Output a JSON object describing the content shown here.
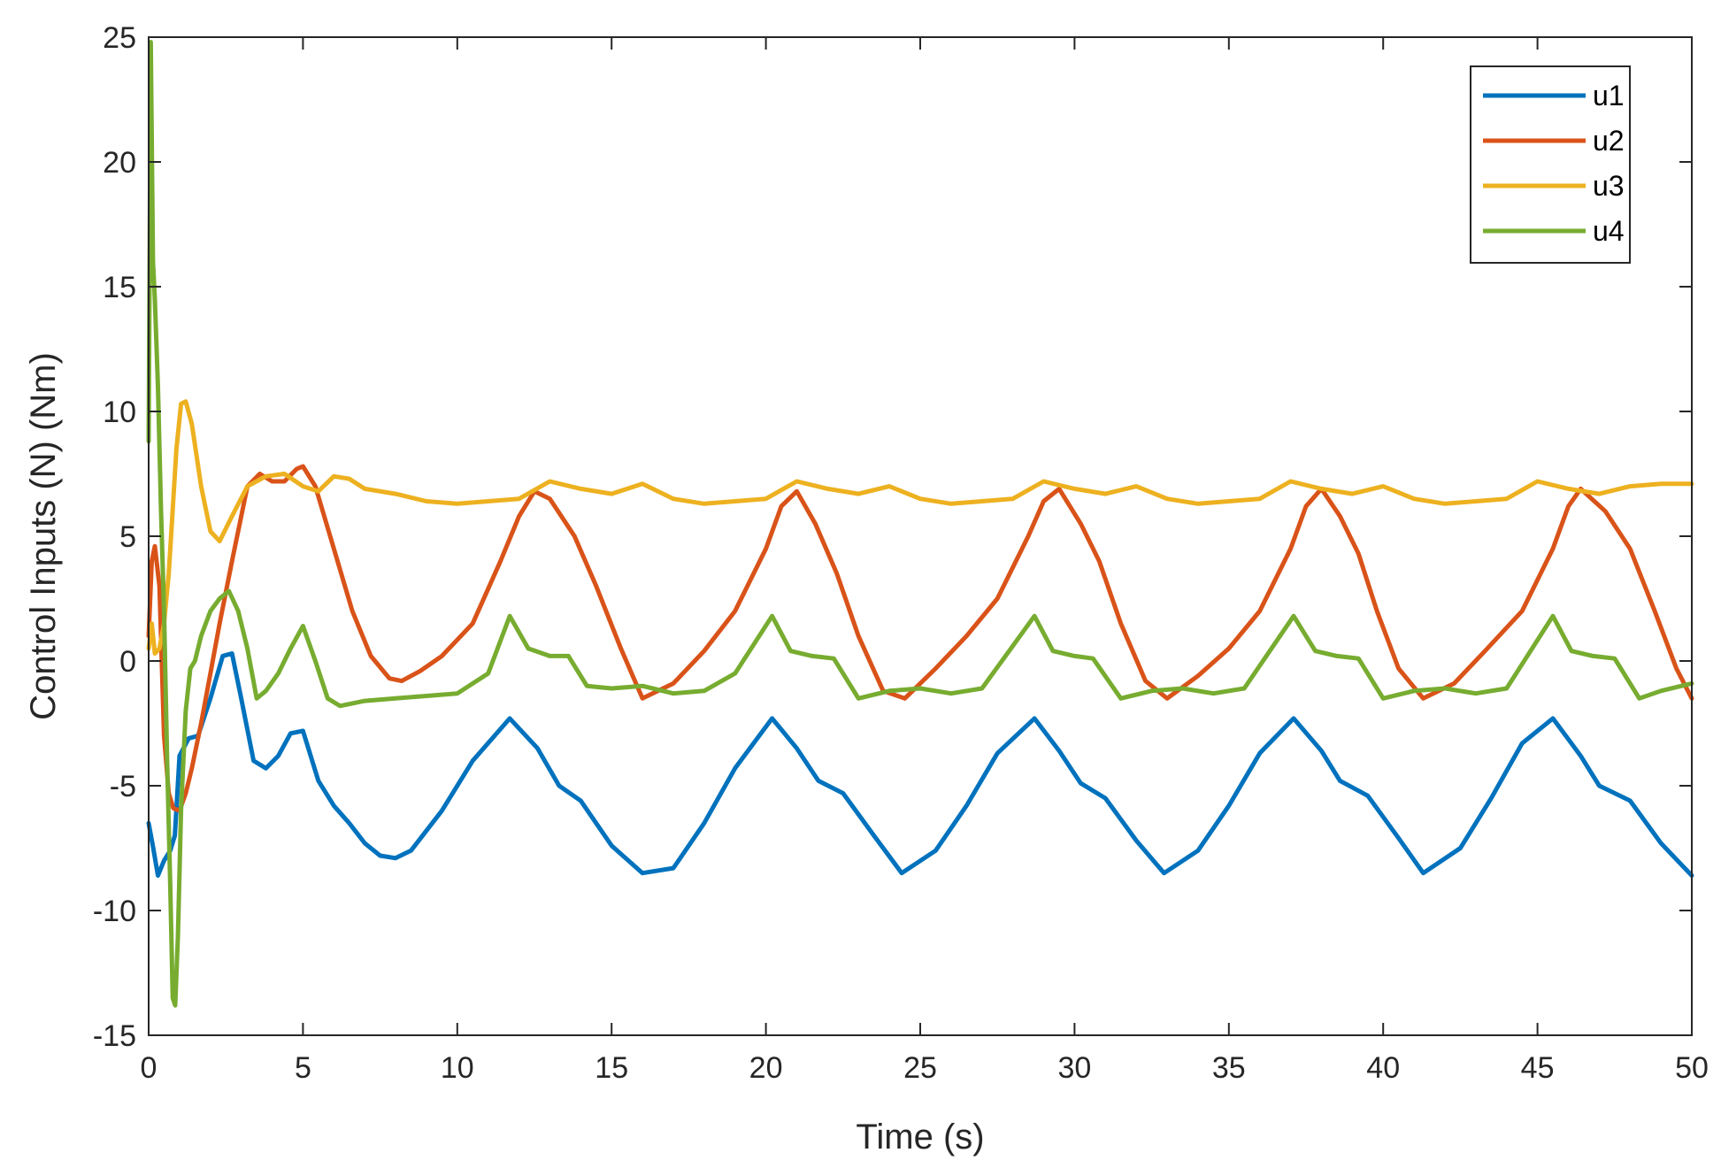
{
  "chart_data": {
    "type": "line",
    "title": "",
    "xlabel": "Time (s)",
    "ylabel": "Control Inputs (N) (Nm)",
    "xlim": [
      0,
      50
    ],
    "ylim": [
      -15,
      25
    ],
    "xticks": [
      0,
      5,
      10,
      15,
      20,
      25,
      30,
      35,
      40,
      45,
      50
    ],
    "yticks": [
      -15,
      -10,
      -5,
      0,
      5,
      10,
      15,
      20,
      25
    ],
    "xtick_labels": [
      "0",
      "5",
      "10",
      "15",
      "20",
      "25",
      "30",
      "35",
      "40",
      "45",
      "50"
    ],
    "ytick_labels": [
      "-15",
      "-10",
      "-5",
      "0",
      "5",
      "10",
      "15",
      "20",
      "25"
    ],
    "grid": false,
    "legend_position": "top-right",
    "series": [
      {
        "name": "u1",
        "color": "#0072BD",
        "x": [
          0,
          0.15,
          0.3,
          0.5,
          0.7,
          0.85,
          1.0,
          1.3,
          1.6,
          2.0,
          2.4,
          2.7,
          3.0,
          3.4,
          3.8,
          4.2,
          4.6,
          5.0,
          5.5,
          6.0,
          6.5,
          7.0,
          7.5,
          8.0,
          8.5,
          9.5,
          10.5,
          11.7,
          12.6,
          13.3,
          14.0,
          15.0,
          16.0,
          17.0,
          18.0,
          19.0,
          20.2,
          21.0,
          21.7,
          22.5,
          23.5,
          24.4,
          25.5,
          26.5,
          27.5,
          28.7,
          29.5,
          30.2,
          31.0,
          32.0,
          32.9,
          34.0,
          35.0,
          36.0,
          37.1,
          38.0,
          38.6,
          39.5,
          40.5,
          41.3,
          42.5,
          43.5,
          44.5,
          45.5,
          46.4,
          47.0,
          48.0,
          49.0,
          50.0
        ],
        "y": [
          -6.5,
          -7.5,
          -8.6,
          -8.0,
          -7.6,
          -7.0,
          -3.8,
          -3.1,
          -3.0,
          -1.5,
          0.2,
          0.3,
          -1.5,
          -4.0,
          -4.3,
          -3.8,
          -2.9,
          -2.8,
          -4.8,
          -5.8,
          -6.5,
          -7.3,
          -7.8,
          -7.9,
          -7.6,
          -6.0,
          -4.0,
          -2.3,
          -3.5,
          -5.0,
          -5.6,
          -7.4,
          -8.5,
          -8.3,
          -6.5,
          -4.3,
          -2.3,
          -3.5,
          -4.8,
          -5.3,
          -7.0,
          -8.5,
          -7.6,
          -5.8,
          -3.7,
          -2.3,
          -3.6,
          -4.9,
          -5.5,
          -7.2,
          -8.5,
          -7.6,
          -5.8,
          -3.7,
          -2.3,
          -3.6,
          -4.8,
          -5.4,
          -7.1,
          -8.5,
          -7.5,
          -5.5,
          -3.3,
          -2.3,
          -3.8,
          -5.0,
          -5.6,
          -7.3,
          -8.6
        ]
      },
      {
        "name": "u2",
        "color": "#D95319",
        "x": [
          0,
          0.1,
          0.2,
          0.35,
          0.5,
          0.65,
          0.8,
          1.0,
          1.2,
          1.4,
          1.7,
          2.0,
          2.3,
          2.7,
          3.2,
          3.6,
          4.0,
          4.4,
          4.8,
          5.0,
          5.4,
          6.0,
          6.6,
          7.2,
          7.8,
          8.2,
          8.8,
          9.5,
          10.5,
          11.4,
          12.0,
          12.5,
          13.0,
          13.8,
          14.5,
          15.3,
          16.0,
          17.0,
          18.0,
          19.0,
          20.0,
          20.5,
          21.0,
          21.6,
          22.3,
          23.0,
          23.8,
          24.5,
          25.5,
          26.5,
          27.5,
          28.5,
          29.0,
          29.5,
          30.2,
          30.8,
          31.5,
          32.3,
          33.0,
          34.0,
          35.0,
          36.0,
          37.0,
          37.5,
          38.0,
          38.6,
          39.2,
          39.8,
          40.5,
          41.3,
          42.3,
          43.3,
          44.5,
          45.5,
          46.0,
          46.4,
          47.2,
          48.0,
          48.8,
          49.5,
          50.0
        ],
        "y": [
          1.0,
          4.0,
          4.6,
          3.0,
          -3.0,
          -5.3,
          -5.9,
          -6.0,
          -5.3,
          -4.3,
          -2.5,
          -0.5,
          1.5,
          4.0,
          7.0,
          7.5,
          7.2,
          7.2,
          7.7,
          7.8,
          7.0,
          4.5,
          2.0,
          0.2,
          -0.7,
          -0.8,
          -0.4,
          0.2,
          1.5,
          4.0,
          5.8,
          6.8,
          6.5,
          5.0,
          3.0,
          0.5,
          -1.5,
          -0.9,
          0.4,
          2.0,
          4.5,
          6.2,
          6.8,
          5.5,
          3.5,
          1.0,
          -1.2,
          -1.5,
          -0.3,
          1.0,
          2.5,
          5.0,
          6.4,
          6.9,
          5.5,
          4.0,
          1.5,
          -0.8,
          -1.5,
          -0.6,
          0.5,
          2.0,
          4.5,
          6.2,
          6.9,
          5.8,
          4.3,
          2.0,
          -0.3,
          -1.5,
          -0.9,
          0.4,
          2.0,
          4.5,
          6.2,
          6.9,
          6.0,
          4.5,
          2.0,
          -0.3,
          -1.5
        ]
      },
      {
        "name": "u3",
        "color": "#EDB120",
        "x": [
          0,
          0.1,
          0.2,
          0.35,
          0.5,
          0.65,
          0.75,
          0.9,
          1.05,
          1.2,
          1.4,
          1.7,
          2.0,
          2.3,
          2.7,
          3.2,
          3.8,
          4.4,
          5.0,
          5.5,
          6.0,
          6.5,
          7.0,
          8.0,
          9.0,
          10.0,
          11.0,
          12.0,
          13.0,
          14.0,
          15.0,
          16.0,
          17.0,
          18.0,
          19.0,
          20.0,
          21.0,
          22.0,
          23.0,
          24.0,
          25.0,
          26.0,
          27.0,
          28.0,
          29.0,
          30.0,
          31.0,
          32.0,
          33.0,
          34.0,
          35.0,
          36.0,
          37.0,
          38.0,
          39.0,
          40.0,
          41.0,
          42.0,
          43.0,
          44.0,
          45.0,
          46.0,
          47.0,
          48.0,
          49.0,
          50.0
        ],
        "y": [
          0.5,
          1.5,
          0.3,
          0.5,
          1.5,
          3.5,
          5.5,
          8.5,
          10.3,
          10.4,
          9.5,
          7.0,
          5.2,
          4.8,
          5.8,
          7.0,
          7.4,
          7.5,
          7.0,
          6.8,
          7.4,
          7.3,
          6.9,
          6.7,
          6.4,
          6.3,
          6.4,
          6.5,
          7.2,
          6.9,
          6.7,
          7.1,
          6.5,
          6.3,
          6.4,
          6.5,
          7.2,
          6.9,
          6.7,
          7.0,
          6.5,
          6.3,
          6.4,
          6.5,
          7.2,
          6.9,
          6.7,
          7.0,
          6.5,
          6.3,
          6.4,
          6.5,
          7.2,
          6.9,
          6.7,
          7.0,
          6.5,
          6.3,
          6.4,
          6.5,
          7.2,
          6.9,
          6.7,
          7.0,
          7.1,
          7.1
        ]
      },
      {
        "name": "u4",
        "color": "#77AC30",
        "x": [
          0,
          0.07,
          0.14,
          0.2,
          0.3,
          0.4,
          0.5,
          0.6,
          0.7,
          0.78,
          0.86,
          0.95,
          1.05,
          1.2,
          1.35,
          1.5,
          1.7,
          2.0,
          2.3,
          2.6,
          2.9,
          3.2,
          3.5,
          3.8,
          4.2,
          4.6,
          5.0,
          5.4,
          5.8,
          6.2,
          7.0,
          8.0,
          9.0,
          10.0,
          11.0,
          11.7,
          12.3,
          13.0,
          13.6,
          14.2,
          15.0,
          16.0,
          17.0,
          18.0,
          19.0,
          20.2,
          20.8,
          21.5,
          22.2,
          23.0,
          24.0,
          25.0,
          26.0,
          27.0,
          28.7,
          29.3,
          30.0,
          30.6,
          31.5,
          32.5,
          33.5,
          34.5,
          35.5,
          37.1,
          37.8,
          38.5,
          39.2,
          40.0,
          41.0,
          42.0,
          43.0,
          44.0,
          45.5,
          46.1,
          46.8,
          47.5,
          48.3,
          49.0,
          50.0
        ],
        "y": [
          8.8,
          24.8,
          16.0,
          14.5,
          11.0,
          6.0,
          2.0,
          -4.0,
          -9.0,
          -13.5,
          -13.8,
          -11.0,
          -6.0,
          -2.0,
          -0.3,
          0.0,
          1.0,
          2.0,
          2.5,
          2.8,
          2.0,
          0.5,
          -1.5,
          -1.2,
          -0.5,
          0.5,
          1.4,
          0.0,
          -1.5,
          -1.8,
          -1.6,
          -1.5,
          -1.4,
          -1.3,
          -0.5,
          1.8,
          0.5,
          0.2,
          0.2,
          -1.0,
          -1.1,
          -1.0,
          -1.3,
          -1.2,
          -0.5,
          1.8,
          0.4,
          0.2,
          0.1,
          -1.5,
          -1.2,
          -1.1,
          -1.3,
          -1.1,
          1.8,
          0.4,
          0.2,
          0.1,
          -1.5,
          -1.2,
          -1.1,
          -1.3,
          -1.1,
          1.8,
          0.4,
          0.2,
          0.1,
          -1.5,
          -1.2,
          -1.1,
          -1.3,
          -1.1,
          1.8,
          0.4,
          0.2,
          0.1,
          -1.5,
          -1.2,
          -0.9
        ]
      }
    ]
  }
}
